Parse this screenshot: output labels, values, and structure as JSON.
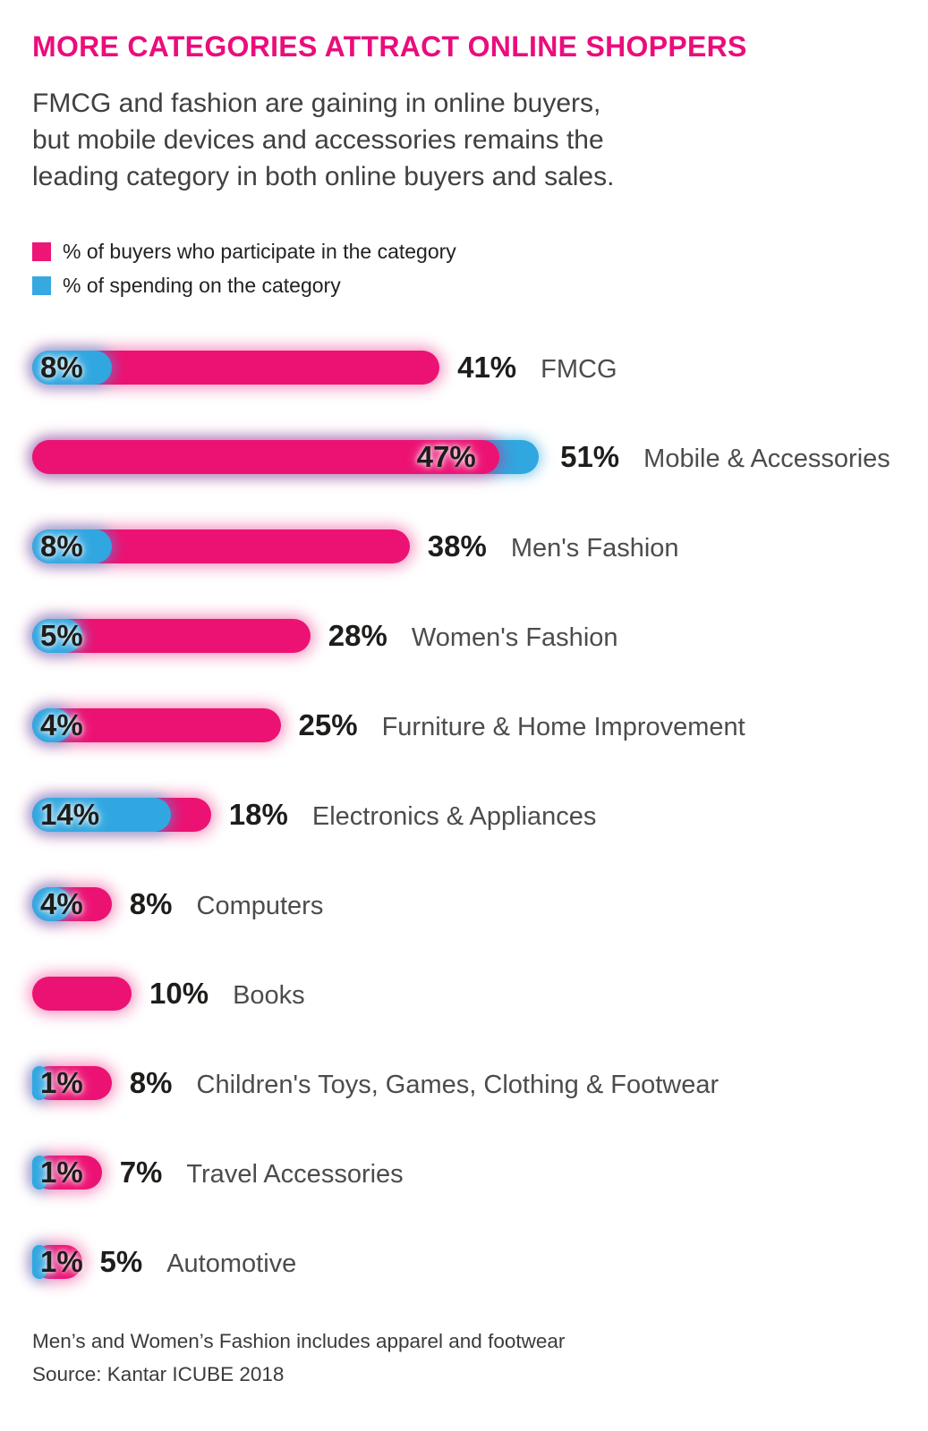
{
  "page": {
    "title": "MORE CATEGORIES ATTRACT ONLINE SHOPPERS",
    "subtitle_lines": [
      "FMCG and fashion are gaining in online buyers,",
      "but mobile devices and accessories remains the",
      "leading category in both online buyers and sales."
    ],
    "footnote": "Men’s and Women’s Fashion includes apparel and footwear",
    "source": "Source: Kantar ICUBE 2018"
  },
  "legend": {
    "items": [
      {
        "label": "% of buyers who participate in the category",
        "color": "#ed1576"
      },
      {
        "label": "% of spending on the category",
        "color": "#36a9e1"
      }
    ]
  },
  "colors": {
    "title": "#ea0d7c",
    "buyers_bar": "#ec1273",
    "spending_bar": "#30a7e0",
    "value_text": "#1d1d1b",
    "category_text": "#4c4c4c"
  },
  "chart_data": {
    "type": "bar",
    "orientation": "horizontal",
    "value_unit": "%",
    "xlim": [
      0,
      55
    ],
    "grid": false,
    "legend_position": "top-left",
    "series": [
      {
        "name": "% of buyers who participate in the category",
        "color": "#ec1273"
      },
      {
        "name": "% of spending on the category",
        "color": "#30a7e0"
      }
    ],
    "rows": [
      {
        "category": "FMCG",
        "buyers": 41,
        "spending": 8
      },
      {
        "category": "Mobile & Accessories",
        "buyers": 47,
        "spending": 51
      },
      {
        "category": "Men's Fashion",
        "buyers": 38,
        "spending": 8
      },
      {
        "category": "Women's Fashion",
        "buyers": 28,
        "spending": 5
      },
      {
        "category": "Furniture & Home Improvement",
        "buyers": 25,
        "spending": 4
      },
      {
        "category": "Electronics & Appliances",
        "buyers": 18,
        "spending": 14
      },
      {
        "category": "Computers",
        "buyers": 8,
        "spending": 4
      },
      {
        "category": "Books",
        "buyers": 10,
        "spending": null
      },
      {
        "category": "Children's Toys, Games, Clothing & Footwear",
        "buyers": 8,
        "spending": 1
      },
      {
        "category": "Travel Accessories",
        "buyers": 7,
        "spending": 1
      },
      {
        "category": "Automotive",
        "buyers": 5,
        "spending": 1
      }
    ]
  }
}
